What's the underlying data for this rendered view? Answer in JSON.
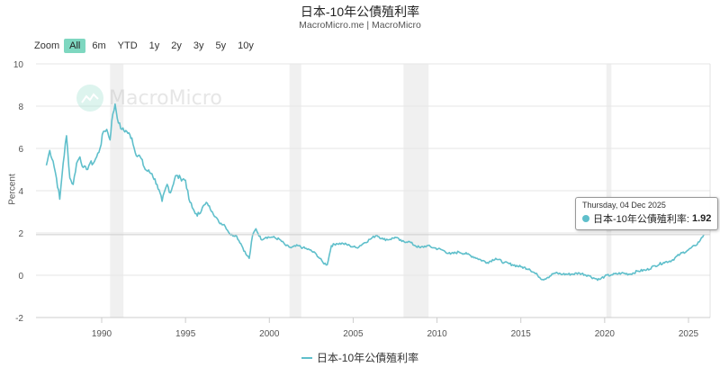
{
  "header": {
    "title": "日本-10年公債殖利率",
    "subtitle": "MacroMicro.me | MacroMicro"
  },
  "range_selector": {
    "zoom_label": "Zoom",
    "buttons": [
      "All",
      "6m",
      "YTD",
      "1y",
      "2y",
      "3y",
      "5y",
      "10y"
    ],
    "active": "All"
  },
  "watermark": {
    "text": "MacroMicro"
  },
  "tooltip": {
    "date": "Thursday, 04 Dec 2025",
    "series": "日本-10年公債殖利率:",
    "value": "1.92"
  },
  "legend": {
    "label": "日本-10年公債殖利率"
  },
  "colors": {
    "series": "#5fbfcb",
    "active_button": "#7ed7c0",
    "recession_band": "#f0f0f0",
    "grid": "#e6e6e6"
  },
  "chart_data": {
    "type": "line",
    "title": "日本-10年公債殖利率",
    "subtitle": "MacroMicro.me | MacroMicro",
    "xlabel": "",
    "ylabel": "Percent",
    "ylim": [
      -2,
      10
    ],
    "yticks": [
      -2,
      0,
      2,
      4,
      6,
      8,
      10
    ],
    "xticks": [
      1990,
      1995,
      2000,
      2005,
      2010,
      2015,
      2020,
      2025
    ],
    "xlim": [
      1986.5,
      2025.95
    ],
    "grid": true,
    "legend_position": "bottom-center",
    "shaded_periods": [
      [
        1990.5,
        1991.3
      ],
      [
        2001.2,
        2001.9
      ],
      [
        2008.0,
        2009.5
      ],
      [
        2020.1,
        2020.4
      ]
    ],
    "series": [
      {
        "name": "日本-10年公債殖利率",
        "color": "#5fbfcb",
        "x": [
          1986.7,
          1986.9,
          1987.1,
          1987.3,
          1987.5,
          1987.7,
          1987.9,
          1988.1,
          1988.3,
          1988.5,
          1988.7,
          1988.9,
          1989.1,
          1989.3,
          1989.5,
          1989.7,
          1989.9,
          1990.1,
          1990.3,
          1990.5,
          1990.6,
          1990.8,
          1991.0,
          1991.2,
          1991.5,
          1991.8,
          1992.0,
          1992.3,
          1992.6,
          1993.0,
          1993.3,
          1993.6,
          1993.9,
          1994.1,
          1994.4,
          1994.7,
          1995.0,
          1995.2,
          1995.4,
          1995.7,
          1996.0,
          1996.3,
          1996.6,
          1997.0,
          1997.3,
          1997.7,
          1998.0,
          1998.3,
          1998.6,
          1998.8,
          1999.0,
          1999.2,
          1999.5,
          1999.8,
          2000.2,
          2000.6,
          2001.0,
          2001.3,
          2001.7,
          2002.0,
          2002.4,
          2002.8,
          2003.2,
          2003.45,
          2003.7,
          2004.0,
          2004.4,
          2004.8,
          2005.2,
          2005.6,
          2006.0,
          2006.4,
          2006.8,
          2007.2,
          2007.5,
          2007.9,
          2008.3,
          2008.7,
          2009.0,
          2009.4,
          2009.8,
          2010.3,
          2010.8,
          2011.3,
          2011.8,
          2012.4,
          2013.0,
          2013.5,
          2014.0,
          2014.5,
          2015.0,
          2015.5,
          2016.0,
          2016.3,
          2016.6,
          2017.0,
          2017.5,
          2018.0,
          2018.5,
          2019.0,
          2019.4,
          2019.7,
          2020.0,
          2020.4,
          2021.0,
          2021.5,
          2022.0,
          2022.5,
          2023.0,
          2023.5,
          2024.0,
          2024.5,
          2025.0,
          2025.4,
          2025.7,
          2025.92
        ],
        "values": [
          5.2,
          5.9,
          5.4,
          4.6,
          3.6,
          5.3,
          6.6,
          4.6,
          4.3,
          5.3,
          5.6,
          5.1,
          5.0,
          5.3,
          5.3,
          5.6,
          6.0,
          6.8,
          6.9,
          6.4,
          7.3,
          8.1,
          7.2,
          6.9,
          6.8,
          6.5,
          5.8,
          5.6,
          5.0,
          4.8,
          4.3,
          3.5,
          4.3,
          3.9,
          4.7,
          4.6,
          4.5,
          3.6,
          3.2,
          2.8,
          3.2,
          3.4,
          3.0,
          2.5,
          2.4,
          1.9,
          1.9,
          1.5,
          1.0,
          0.8,
          1.9,
          2.2,
          1.7,
          1.8,
          1.8,
          1.7,
          1.4,
          1.3,
          1.4,
          1.3,
          1.2,
          1.0,
          0.6,
          0.5,
          1.4,
          1.5,
          1.5,
          1.4,
          1.3,
          1.5,
          1.7,
          1.9,
          1.7,
          1.7,
          1.8,
          1.6,
          1.6,
          1.4,
          1.3,
          1.4,
          1.3,
          1.2,
          1.0,
          1.1,
          1.0,
          0.8,
          0.6,
          0.8,
          0.6,
          0.5,
          0.4,
          0.3,
          0.0,
          -0.2,
          -0.1,
          0.1,
          0.05,
          0.05,
          0.1,
          0.0,
          -0.15,
          -0.2,
          -0.05,
          0.02,
          0.1,
          0.05,
          0.2,
          0.25,
          0.45,
          0.6,
          0.7,
          1.0,
          1.2,
          1.4,
          1.65,
          1.92
        ]
      }
    ]
  }
}
